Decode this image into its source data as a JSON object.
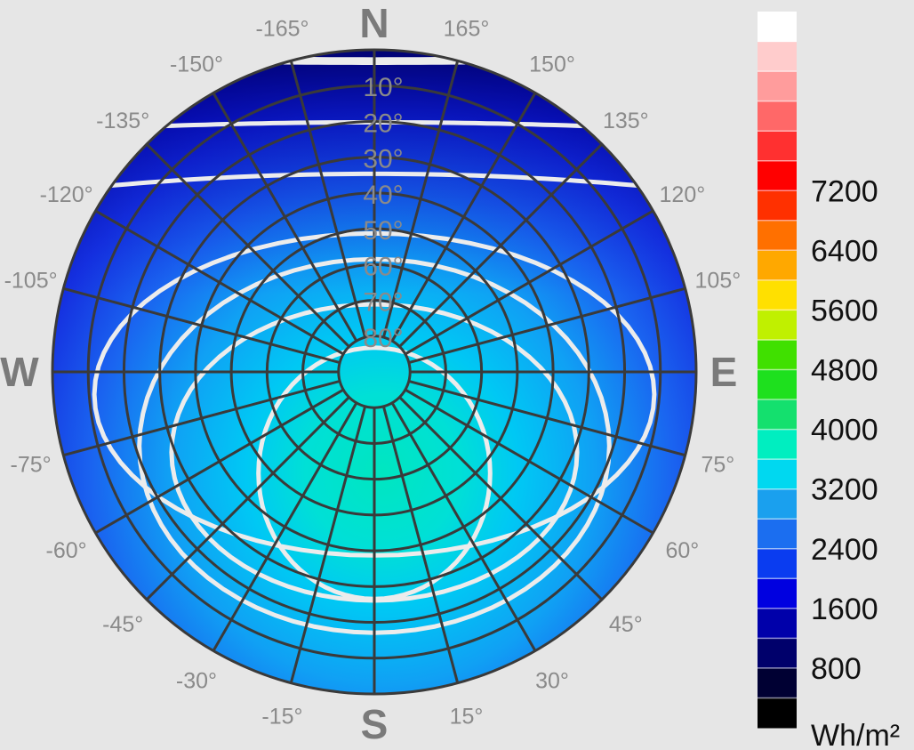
{
  "chart_data": {
    "type": "heatmap",
    "projection": "polar sky dome",
    "center_label": "",
    "cardinals": {
      "north": "N",
      "south": "S",
      "west": "W",
      "east": "E"
    },
    "azimuth_labels": [
      {
        "deg": 165,
        "text": "165°"
      },
      {
        "deg": 150,
        "text": "150°"
      },
      {
        "deg": 135,
        "text": "135°"
      },
      {
        "deg": 120,
        "text": "120°"
      },
      {
        "deg": 105,
        "text": "105°"
      },
      {
        "deg": 75,
        "text": "75°"
      },
      {
        "deg": 60,
        "text": "60°"
      },
      {
        "deg": 45,
        "text": "45°"
      },
      {
        "deg": 30,
        "text": "30°"
      },
      {
        "deg": 15,
        "text": "15°"
      },
      {
        "deg": -15,
        "text": "-15°"
      },
      {
        "deg": -30,
        "text": "-30°"
      },
      {
        "deg": -45,
        "text": "-45°"
      },
      {
        "deg": -60,
        "text": "-60°"
      },
      {
        "deg": -75,
        "text": "-75°"
      },
      {
        "deg": -105,
        "text": "-105°"
      },
      {
        "deg": -120,
        "text": "-120°"
      },
      {
        "deg": -135,
        "text": "-135°"
      },
      {
        "deg": -150,
        "text": "-150°"
      },
      {
        "deg": -165,
        "text": "-165°"
      }
    ],
    "altitude_labels": [
      {
        "alt": 10,
        "text": "10°"
      },
      {
        "alt": 20,
        "text": "20°"
      },
      {
        "alt": 30,
        "text": "30°"
      },
      {
        "alt": 40,
        "text": "40°"
      },
      {
        "alt": 50,
        "text": "50°"
      },
      {
        "alt": 60,
        "text": "60°"
      },
      {
        "alt": 70,
        "text": "70°"
      },
      {
        "alt": 80,
        "text": "80°"
      }
    ],
    "grid": {
      "azimuth_step_deg": 15,
      "altitude_step_deg": 10,
      "color": "#3a3a3a"
    },
    "contour_color": "#ececec",
    "contours": [
      {
        "level": 800,
        "type": "band",
        "y0": 1.0,
        "dip": 0.03
      },
      {
        "level": 1200,
        "type": "band",
        "y0": 0.98,
        "dip": 0.02
      },
      {
        "level": 1600,
        "type": "band",
        "y0": 0.745,
        "dip": -0.03
      },
      {
        "level": 2000,
        "type": "band",
        "y0": 0.555,
        "dip": -0.06
      },
      {
        "level": 2400,
        "type": "ellipse",
        "cy": -0.07,
        "rx": 0.87,
        "ry": 0.5
      },
      {
        "level": 2800,
        "type": "ellipse",
        "cy": -0.23,
        "rx": 0.73,
        "ry": 0.58
      },
      {
        "level": 3000,
        "type": "ellipse",
        "cy": -0.25,
        "rx": 0.63,
        "ry": 0.46
      },
      {
        "level": 3200,
        "type": "ellipse",
        "cy": -0.315,
        "rx": 0.36,
        "ry": 0.39
      }
    ],
    "colorbar": {
      "ticks": [
        800,
        1600,
        2400,
        3200,
        4000,
        4800,
        5600,
        6400,
        7200
      ],
      "unit": "Wh/m²",
      "colors": [
        "#000000",
        "#000033",
        "#00006b",
        "#0000aa",
        "#0000e0",
        "#0a3cf0",
        "#1b6ef0",
        "#1aa0ee",
        "#00d8f0",
        "#00eec0",
        "#14e06e",
        "#1ee01e",
        "#40e000",
        "#c0f000",
        "#ffe000",
        "#ffa800",
        "#ff7000",
        "#ff3000",
        "#ff0000",
        "#ff3030",
        "#ff6868",
        "#ff9c9c",
        "#ffcccc",
        "#ffffff"
      ]
    }
  }
}
